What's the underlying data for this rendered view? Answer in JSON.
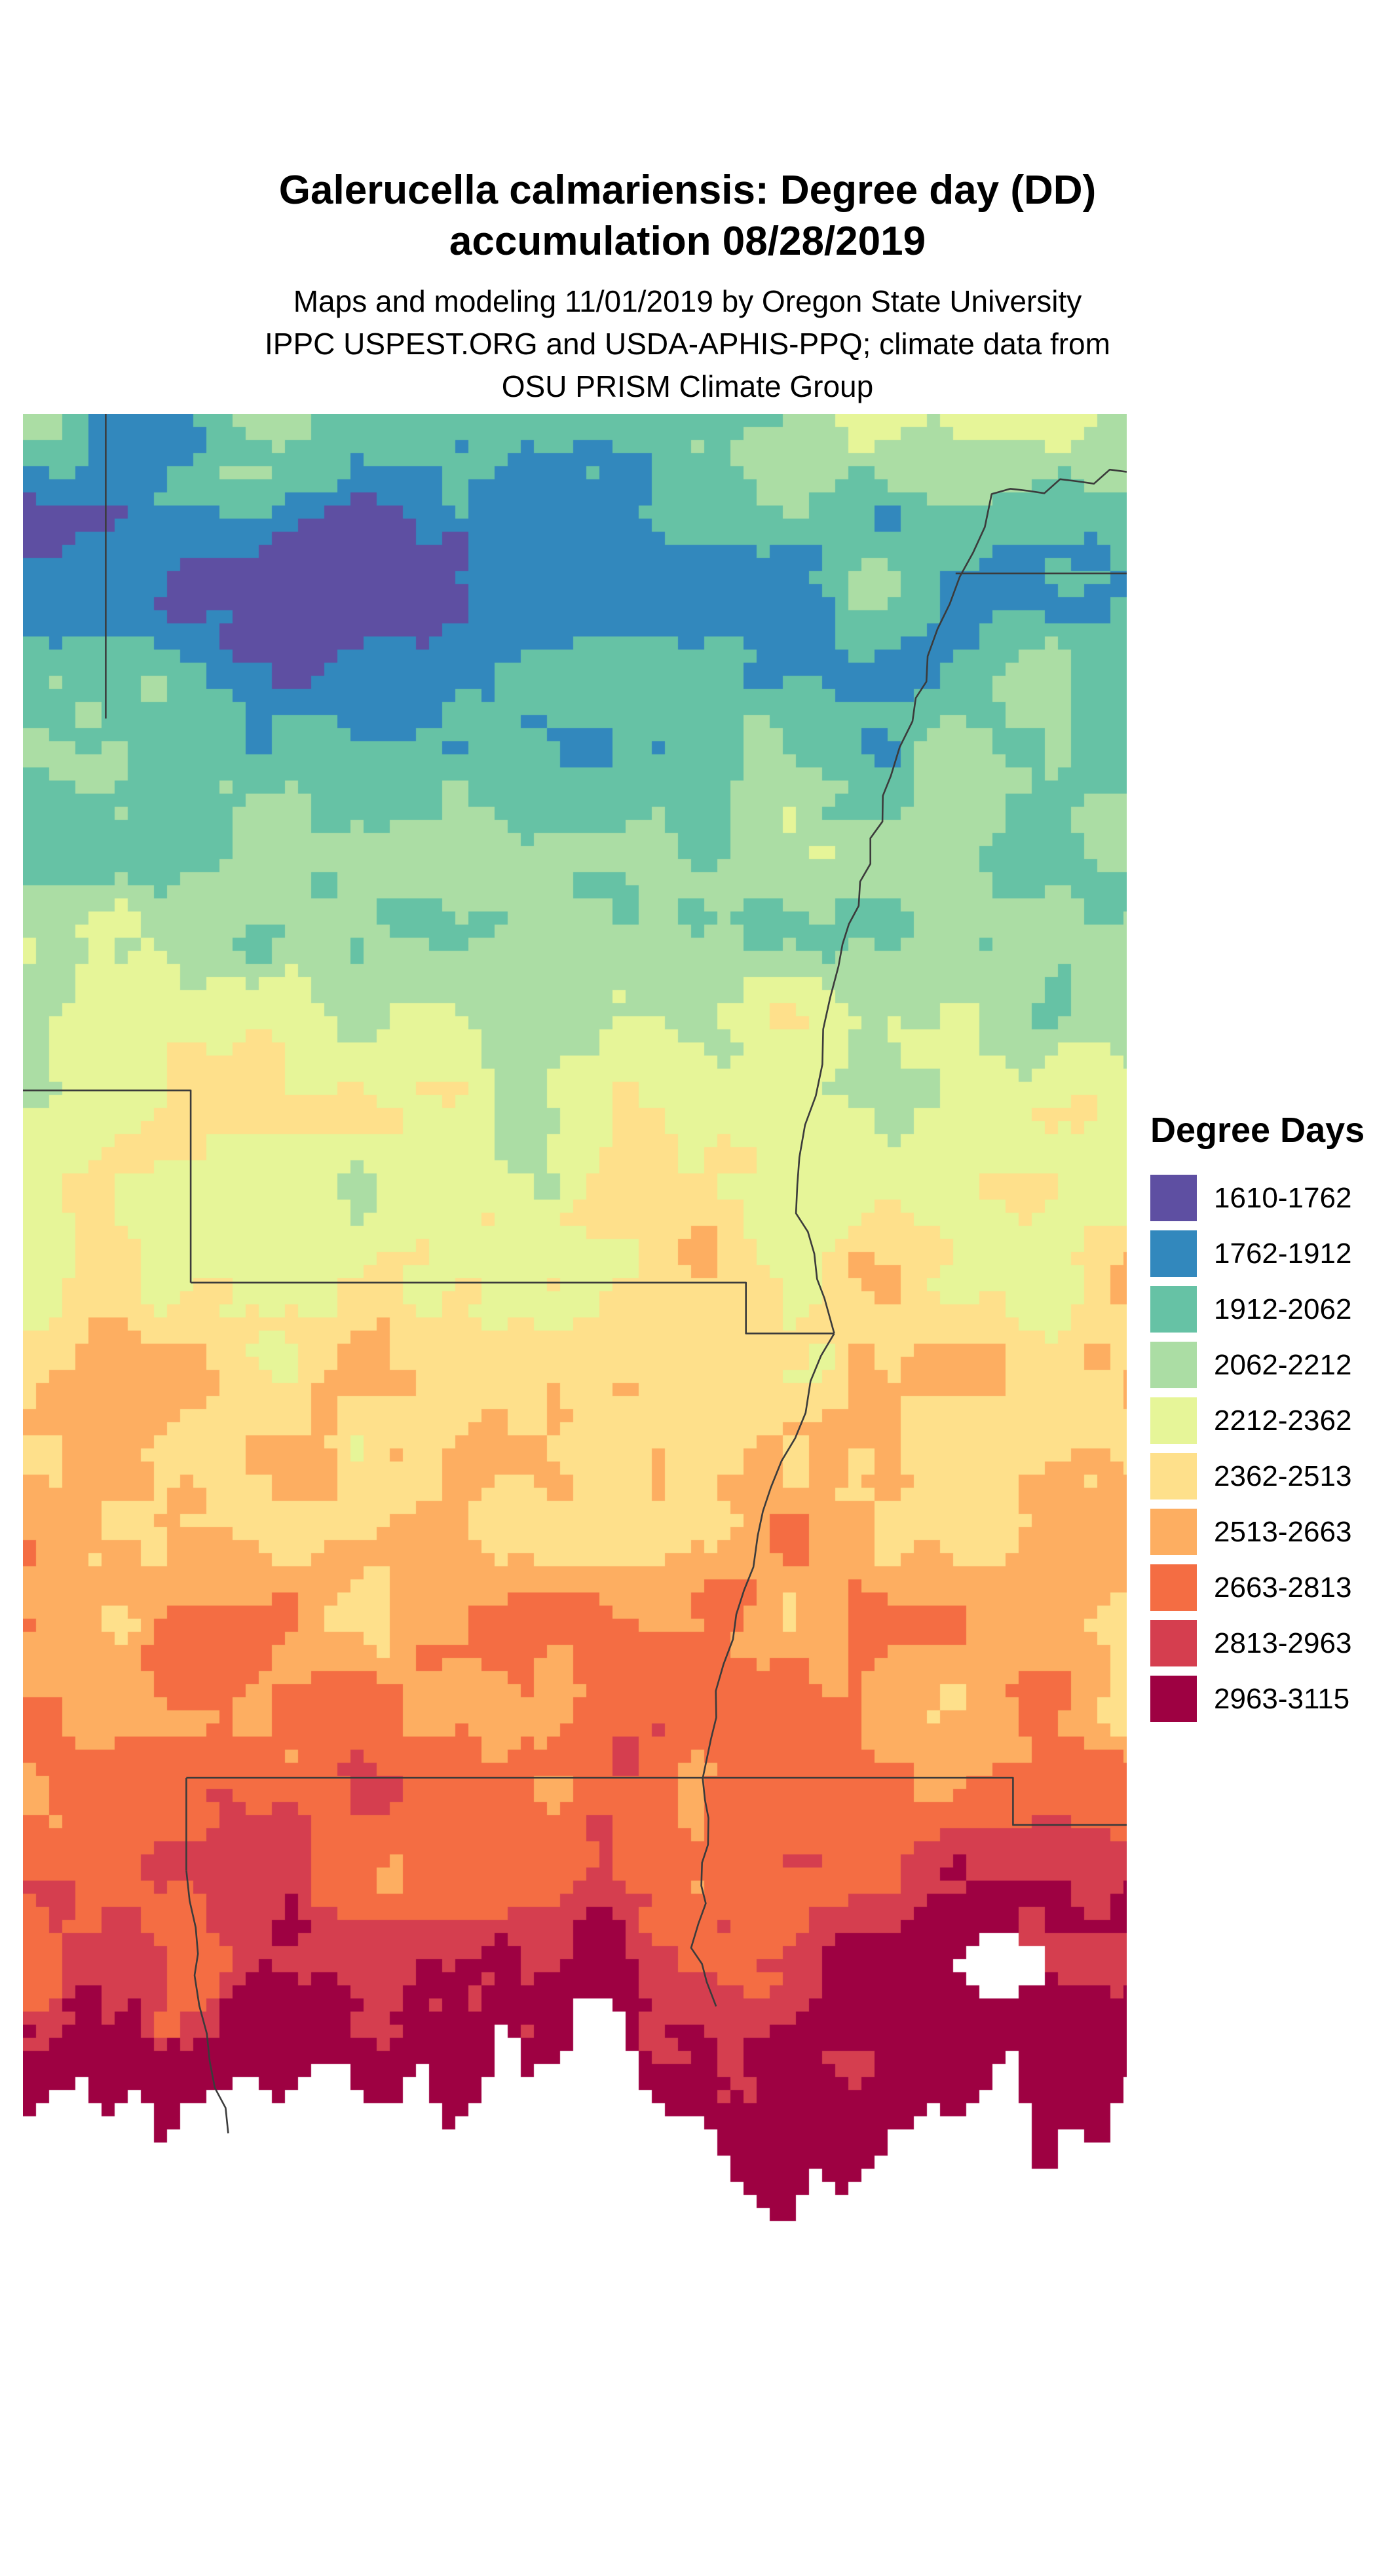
{
  "header": {
    "title_lines": [
      "Galerucella calmariensis: Degree day (DD)",
      "accumulation 08/28/2019"
    ],
    "subtitle_lines": [
      "Maps and modeling 11/01/2019 by Oregon State University",
      "IPPC USPEST.ORG and USDA-APHIS-PPQ; climate data from",
      "OSU PRISM Climate Group"
    ]
  },
  "legend": {
    "title": "Degree Days",
    "items": [
      {
        "label": "1610-1762",
        "color": "#5e4fa2"
      },
      {
        "label": "1762-1912",
        "color": "#3288bd"
      },
      {
        "label": "1912-2062",
        "color": "#66c2a5"
      },
      {
        "label": "2062-2212",
        "color": "#abdda4"
      },
      {
        "label": "2212-2362",
        "color": "#e6f598"
      },
      {
        "label": "2362-2513",
        "color": "#fee08b"
      },
      {
        "label": "2513-2663",
        "color": "#fdae61"
      },
      {
        "label": "2663-2813",
        "color": "#f46d43"
      },
      {
        "label": "2813-2963",
        "color": "#d53e4f"
      },
      {
        "label": "2963-3115",
        "color": "#9e0142"
      }
    ]
  },
  "map": {
    "border_color": "#3b3b3b",
    "background": "#ffffff"
  }
}
